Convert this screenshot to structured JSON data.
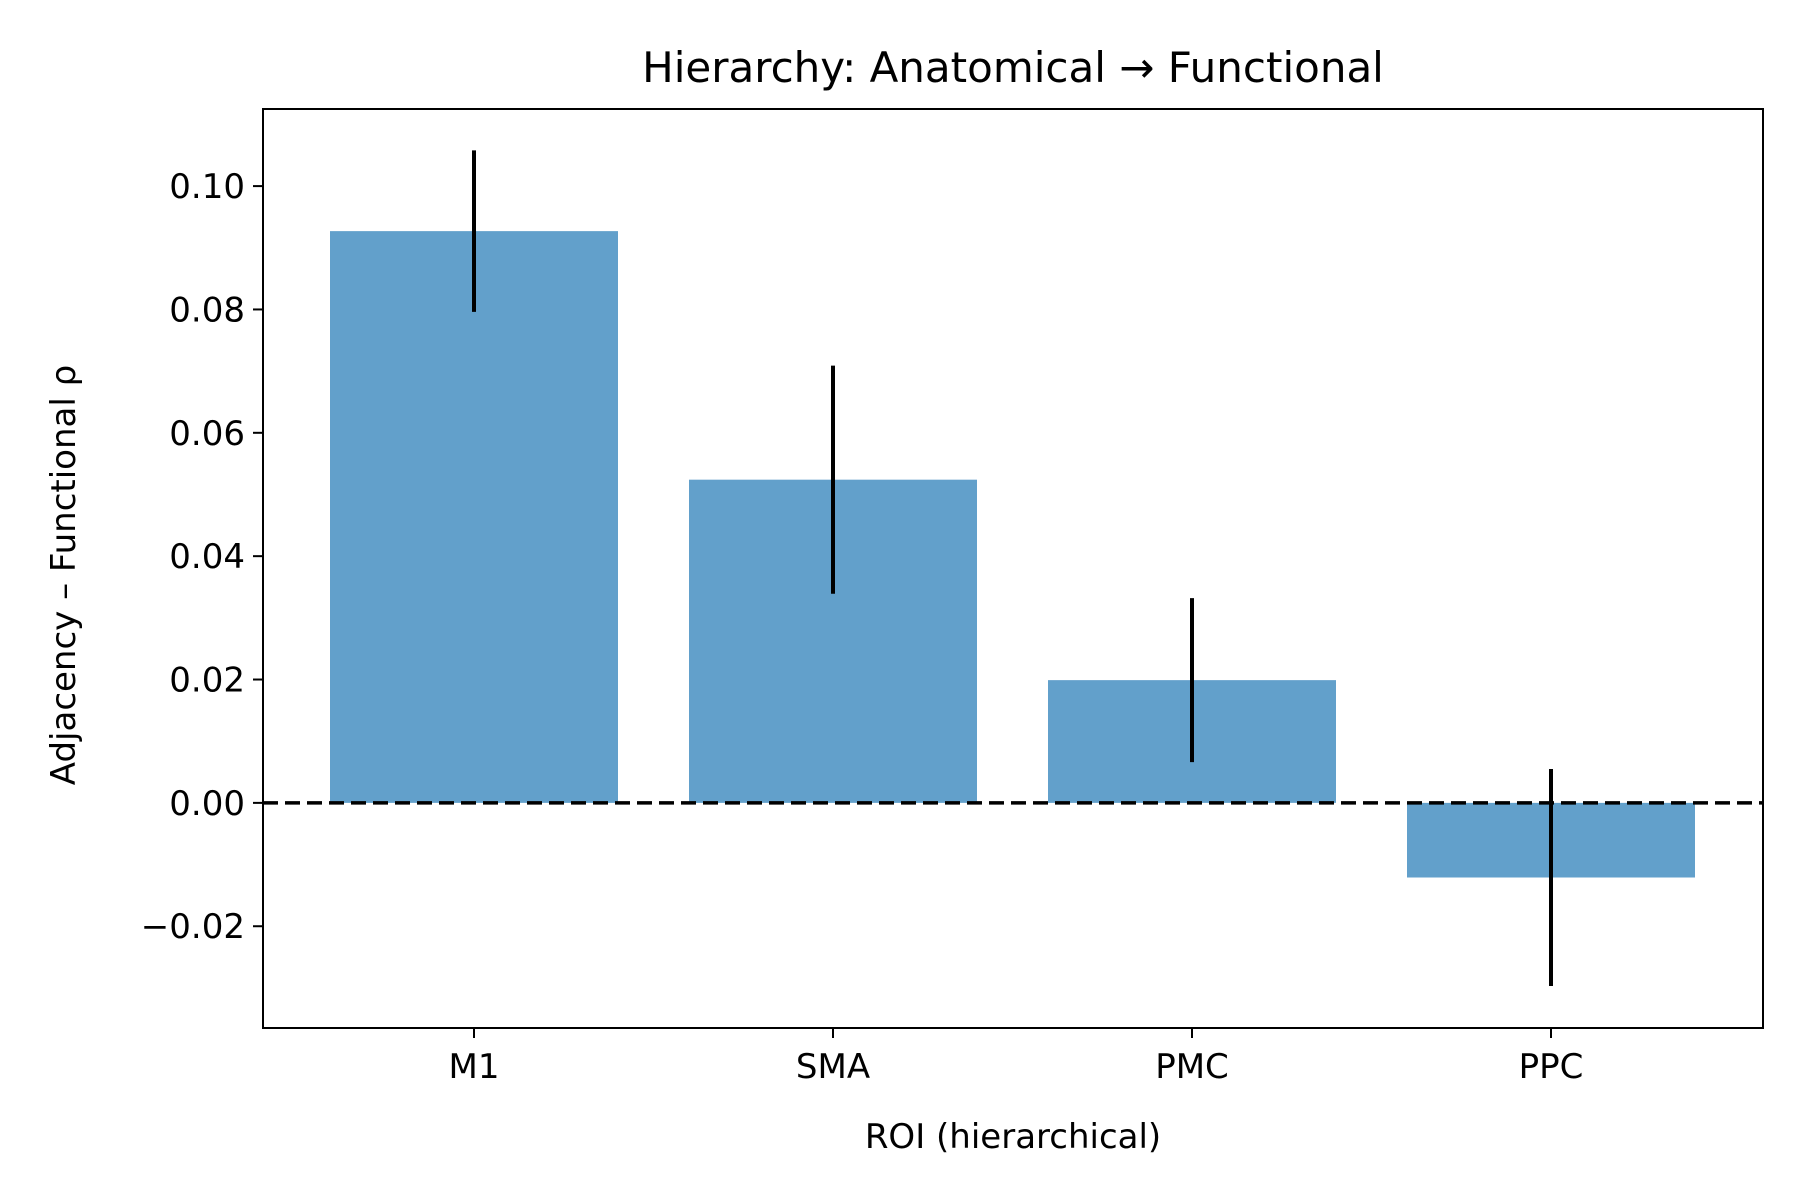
{
  "chart_data": {
    "type": "bar",
    "title": "Hierarchy: Anatomical → Functional",
    "xlabel": "ROI (hierarchical)",
    "ylabel": "Adjacency – Functional ρ",
    "categories": [
      "M1",
      "SMA",
      "PMC",
      "PPC"
    ],
    "values": [
      0.0927,
      0.0524,
      0.0199,
      -0.0121
    ],
    "errors": [
      0.0131,
      0.0185,
      0.0133,
      0.0176
    ],
    "ylim": [
      -0.0365,
      0.1125
    ],
    "yticks": [
      -0.02,
      0.0,
      0.02,
      0.04,
      0.06,
      0.08,
      0.1
    ],
    "ytick_labels": [
      "−0.02",
      "0.00",
      "0.02",
      "0.04",
      "0.06",
      "0.08",
      "0.10"
    ],
    "reference_line": {
      "y": 0.0,
      "style": "dashed"
    },
    "grid": false,
    "colors": {
      "bar": "#62a0cb",
      "errorbar": "#000000",
      "reference_line": "#000000"
    }
  }
}
